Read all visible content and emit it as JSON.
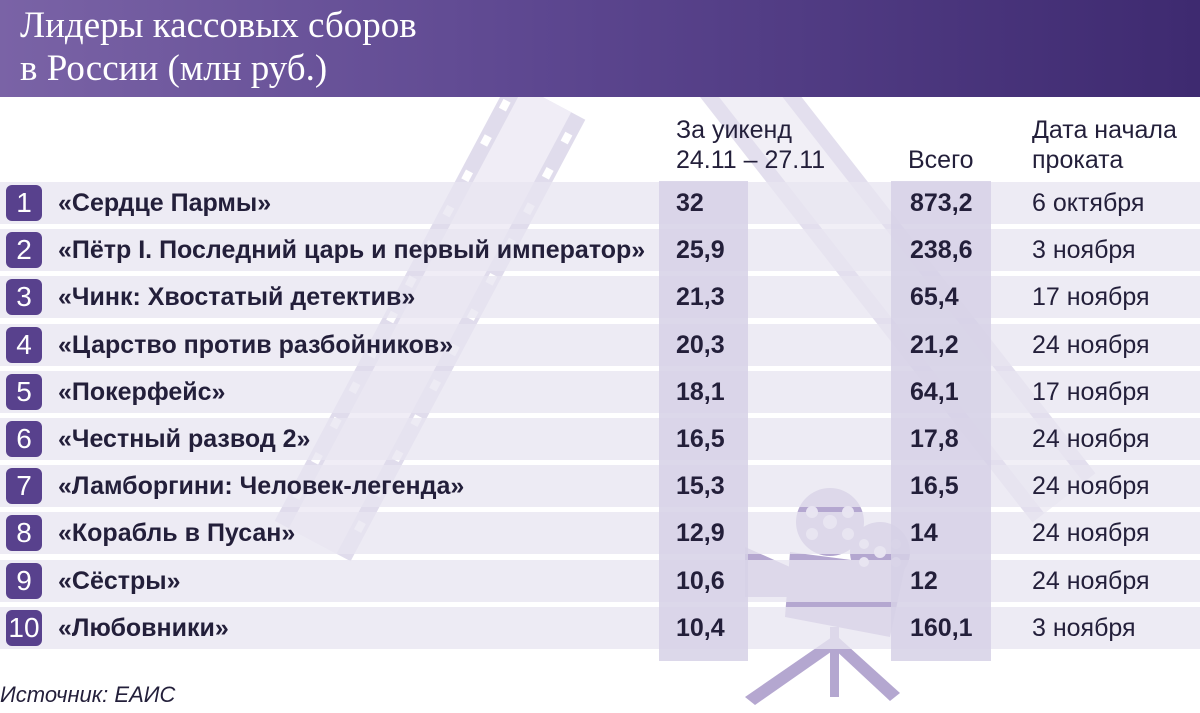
{
  "title_line1": "Лидеры кассовых сборов",
  "title_line2": "в России (млн руб.)",
  "columns": {
    "week_line1": "За уикенд",
    "week_line2": "24.11 – 27.11",
    "total": "Всего",
    "date_line1": "Дата начала",
    "date_line2": "проката"
  },
  "source": "Источник: ЕАИС",
  "colors": {
    "header": "#5d4790",
    "rank_badge": "#58418d",
    "row_band": "#e8e6f1",
    "column_band": "#d6d1e6"
  },
  "icons": [
    "film-strip-icon",
    "movie-camera-icon"
  ],
  "chart_data": {
    "type": "table",
    "title": "Лидеры кассовых сборов в России (млн руб.)",
    "columns": [
      "За уикенд 24.11 – 27.11",
      "Всего",
      "Дата начала проката"
    ],
    "rows": [
      {
        "rank": "1",
        "film": "«Сердце Пармы»",
        "weekend": "32",
        "total": "873,2",
        "release": "6 октября"
      },
      {
        "rank": "2",
        "film": "«Пётр I. Последний царь и первый император»",
        "weekend": "25,9",
        "total": "238,6",
        "release": "3 ноября"
      },
      {
        "rank": "3",
        "film": "«Чинк: Хвостатый детектив»",
        "weekend": "21,3",
        "total": "65,4",
        "release": "17 ноября"
      },
      {
        "rank": "4",
        "film": "«Царство против разбойников»",
        "weekend": "20,3",
        "total": "21,2",
        "release": "24 ноября"
      },
      {
        "rank": "5",
        "film": "«Покерфейс»",
        "weekend": "18,1",
        "total": "64,1",
        "release": "17 ноября"
      },
      {
        "rank": "6",
        "film": "«Честный развод 2»",
        "weekend": "16,5",
        "total": "17,8",
        "release": "24 ноября"
      },
      {
        "rank": "7",
        "film": "«Ламборгини: Человек-легенда»",
        "weekend": "15,3",
        "total": "16,5",
        "release": "24 ноября"
      },
      {
        "rank": "8",
        "film": "«Корабль в Пусан»",
        "weekend": "12,9",
        "total": "14",
        "release": "24 ноября"
      },
      {
        "rank": "9",
        "film": "«Сёстры»",
        "weekend": "10,6",
        "total": "12",
        "release": "24 ноября"
      },
      {
        "rank": "10",
        "film": "«Любовники»",
        "weekend": "10,4",
        "total": "160,1",
        "release": "3 ноября"
      }
    ]
  }
}
